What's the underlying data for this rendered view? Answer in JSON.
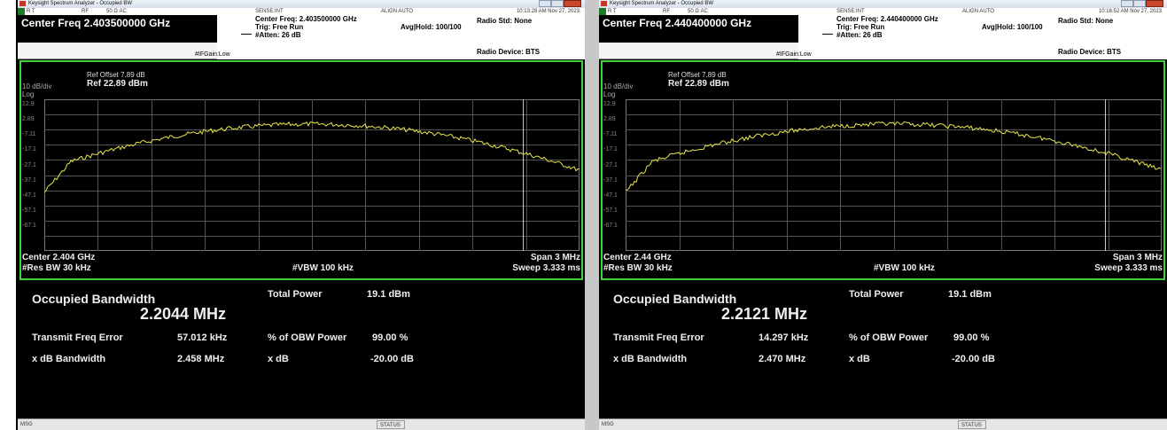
{
  "windows": [
    {
      "title": "Keysight Spectrum Analyzer - Occupied BW",
      "status": {
        "rt": "R T",
        "rf": "RF",
        "imp": "50 Ω  AC",
        "sense": "SENSE:INT",
        "align": "ALIGN AUTO",
        "time": "10:13:28 AM Nov 27, 2023"
      },
      "header": {
        "center": "Center Freq 2.403500000 GHz",
        "center_freq": "Center Freq: 2.403500000 GHz",
        "trig": "Trig: Free Run",
        "atten": "#Atten: 26 dB",
        "avg": "Avg|Hold: 100/100",
        "ifgain": "#IFGain:Low",
        "radio_std": "Radio Std: None",
        "radio_device": "Radio Device: BTS"
      },
      "plot": {
        "ref_offset": "Ref Offset 7.89 dB",
        "scale": "10 dB/div",
        "ref": "Ref 22.89 dBm",
        "log": "Log",
        "y_labels": [
          "12.9",
          "2.89",
          "-7.11",
          "-17.1",
          "-27.1",
          "-37.1",
          "-47.1",
          "-57.1",
          "-67.1"
        ],
        "center": "Center 2.404 GHz",
        "span": "Span 3 MHz",
        "rbw": "#Res BW  30 kHz",
        "vbw": "#VBW  100 kHz",
        "sweep": "Sweep  3.333 ms"
      },
      "results": {
        "obw_label": "Occupied Bandwidth",
        "obw": "2.2044 MHz",
        "total_power_label": "Total Power",
        "total_power": "19.1 dBm",
        "tfe_label": "Transmit Freq Error",
        "tfe": "57.012 kHz",
        "pct_label": "% of OBW Power",
        "pct": "99.00 %",
        "xdb_bw_label": "x dB Bandwidth",
        "xdb_bw": "2.458 MHz",
        "xdb_label": "x dB",
        "xdb": "-20.00 dB"
      },
      "footer": {
        "msg": "MSG",
        "status": "STATUS"
      }
    },
    {
      "title": "Keysight Spectrum Analyzer - Occupied BW",
      "status": {
        "rt": "R T",
        "rf": "RF",
        "imp": "50 Ω  AC",
        "sense": "SENSE:INT",
        "align": "ALIGN AUTO",
        "time": "10:16:52 AM Nov 27, 2023"
      },
      "header": {
        "center": "Center Freq 2.440400000 GHz",
        "center_freq": "Center Freq: 2.440400000 GHz",
        "trig": "Trig: Free Run",
        "atten": "#Atten: 26 dB",
        "avg": "Avg|Hold: 100/100",
        "ifgain": "#IFGain:Low",
        "radio_std": "Radio Std: None",
        "radio_device": "Radio Device: BTS"
      },
      "plot": {
        "ref_offset": "Ref Offset 7.89 dB",
        "scale": "10 dB/div",
        "ref": "Ref 22.89 dBm",
        "log": "Log",
        "y_labels": [
          "12.9",
          "2.89",
          "-7.11",
          "-17.1",
          "-27.1",
          "-37.1",
          "-47.1",
          "-57.1",
          "-67.1"
        ],
        "center": "Center 2.44 GHz",
        "span": "Span 3 MHz",
        "rbw": "#Res BW  30 kHz",
        "vbw": "#VBW  100 kHz",
        "sweep": "Sweep  3.333 ms"
      },
      "results": {
        "obw_label": "Occupied Bandwidth",
        "obw": "2.2121 MHz",
        "total_power_label": "Total Power",
        "total_power": "19.1 dBm",
        "tfe_label": "Transmit Freq Error",
        "tfe": "14.297 kHz",
        "pct_label": "% of OBW Power",
        "pct": "99.00 %",
        "xdb_bw_label": "x dB Bandwidth",
        "xdb_bw": "2.470 MHz",
        "xdb_label": "x dB",
        "xdb": "-20.00 dB"
      },
      "footer": {
        "msg": "MSG",
        "status": "STATUS"
      }
    }
  ]
}
